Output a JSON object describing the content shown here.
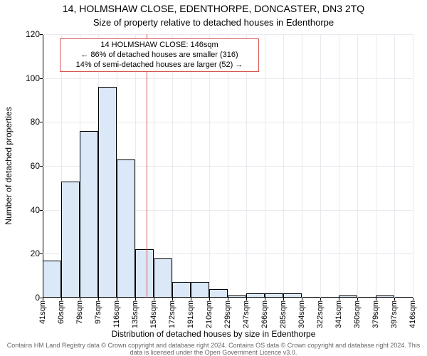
{
  "header": {
    "title": "14, HOLMSHAW CLOSE, EDENTHORPE, DONCASTER, DN3 2TQ",
    "subtitle": "Size of property relative to detached houses in Edenthorpe"
  },
  "chart": {
    "type": "histogram",
    "ylabel": "Number of detached properties",
    "xlabel": "Distribution of detached houses by size in Edenthorpe",
    "ylim": [
      0,
      120
    ],
    "ytick_step": 20,
    "background_color": "#ffffff",
    "grid_color": "#e9e9ef",
    "bar_fill": "#dbe8f8",
    "bar_stroke": "#000000",
    "bar_width_ratio": 1.0,
    "axis_fontsize": 12,
    "tick_fontsize": 11,
    "x_tick_labels": [
      "41sqm",
      "60sqm",
      "79sqm",
      "97sqm",
      "116sqm",
      "135sqm",
      "154sqm",
      "172sqm",
      "191sqm",
      "210sqm",
      "229sqm",
      "247sqm",
      "266sqm",
      "285sqm",
      "304sqm",
      "322sqm",
      "341sqm",
      "360sqm",
      "379sqm",
      "397sqm",
      "416sqm"
    ],
    "values": [
      17,
      53,
      76,
      96,
      63,
      22,
      18,
      7,
      7,
      4,
      1,
      2,
      2,
      2,
      0,
      0,
      1,
      0,
      1,
      0
    ],
    "marker": {
      "value_index": 5.6,
      "color": "#d9534f",
      "annotation_lines": [
        "14 HOLMSHAW CLOSE: 146sqm",
        "← 86% of detached houses are smaller (316)",
        "14% of semi-detached houses are larger (52) →"
      ],
      "annotation_border": "#d9534f",
      "annotation_bg": "#ffffff",
      "annotation_fontsize": 11
    }
  },
  "footer": {
    "text": "Contains HM Land Registry data © Crown copyright and database right 2024. Contains OS data © Crown copyright and database right 2024. This data is licensed under the Open Government Licence v3.0."
  }
}
